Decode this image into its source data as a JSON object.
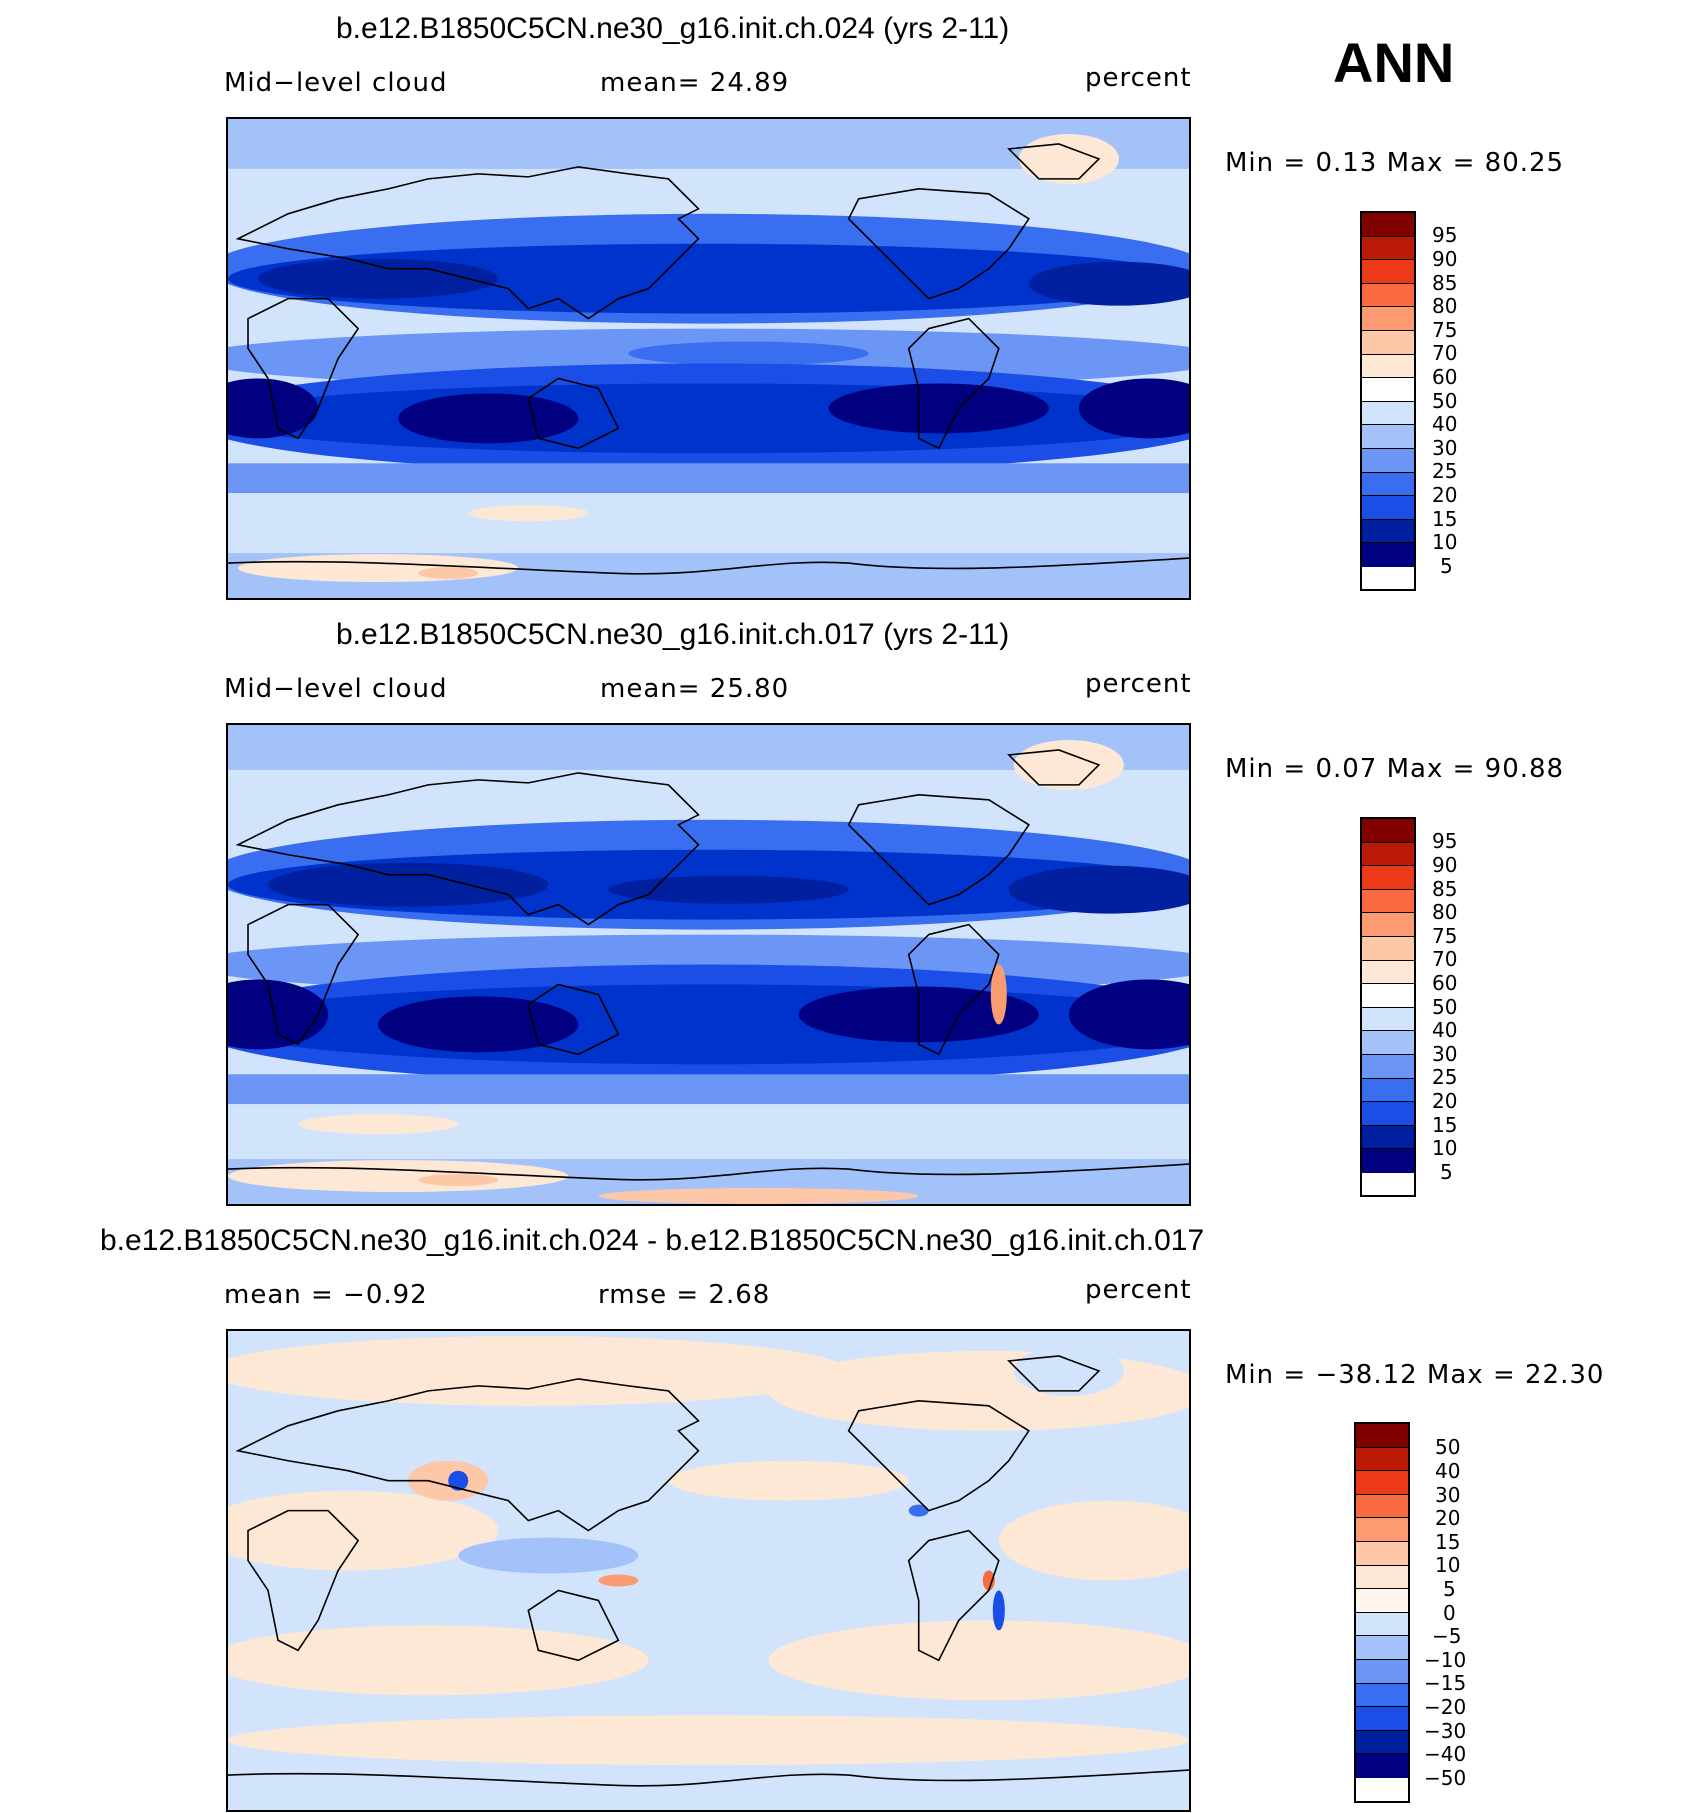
{
  "season": "ANN",
  "panels": [
    {
      "title": "b.e12.B1850C5CN.ne30_g16.init.ch.024 (yrs 2-11)",
      "left_label": "Mid−level  cloud",
      "center_label": "mean=   24.89",
      "units": "percent",
      "minmax": "Min  =    0.13  Max  =   80.25",
      "levels": [
        "95",
        "90",
        "85",
        "80",
        "75",
        "70",
        "60",
        "50",
        "40",
        "30",
        "25",
        "20",
        "15",
        "10",
        "5"
      ]
    },
    {
      "title": "b.e12.B1850C5CN.ne30_g16.init.ch.017 (yrs 2-11)",
      "left_label": "Mid−level  cloud",
      "center_label": "mean=   25.80",
      "units": "percent",
      "minmax": "Min  =    0.07  Max  =   90.88",
      "levels": [
        "95",
        "90",
        "85",
        "80",
        "75",
        "70",
        "60",
        "50",
        "40",
        "30",
        "25",
        "20",
        "15",
        "10",
        "5"
      ]
    },
    {
      "title": "b.e12.B1850C5CN.ne30_g16.init.ch.024 - b.e12.B1850C5CN.ne30_g16.init.ch.017",
      "left_label": "mean  =    −0.92",
      "center_label": "rmse  =    2.68",
      "units": "percent",
      "minmax": "Min  = −38.12  Max  =   22.30",
      "levels": [
        "50",
        "40",
        "30",
        "20",
        "15",
        "10",
        "5",
        "0",
        "−5",
        "−10",
        "−15",
        "−20",
        "−30",
        "−40",
        "−50"
      ]
    }
  ],
  "colorbar_colors": [
    "#000080",
    "#0020a0",
    "#0033cc",
    "#1a4ee6",
    "#3a6ef0",
    "#6c96f5",
    "#a4c2fa",
    "#d2e4fc",
    "#fde8d6",
    "#fcc8a8",
    "#fc9a72",
    "#fa6a40",
    "#ec3a18",
    "#bc1a08",
    "#800000"
  ]
}
